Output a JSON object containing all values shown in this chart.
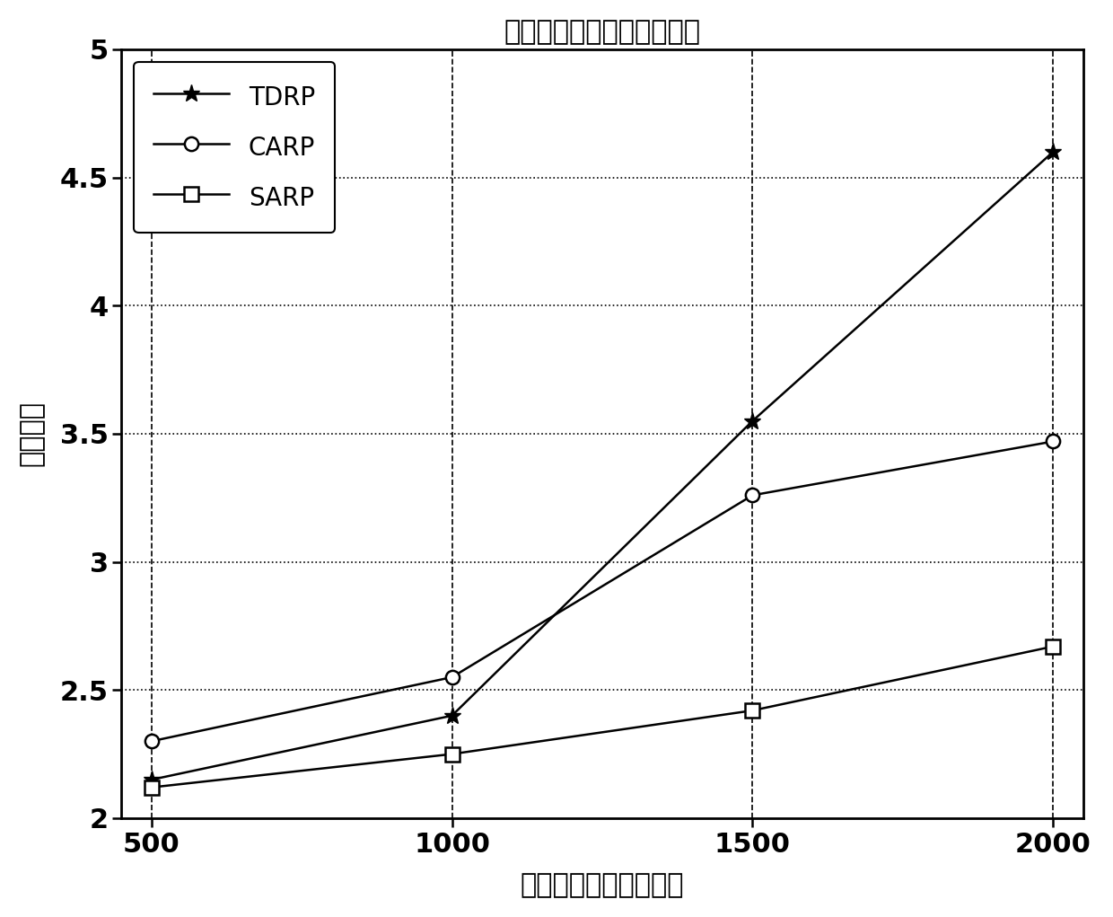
{
  "title": "认知无线网路路由时延仿真",
  "xlabel": "源节点与目的节点距离",
  "ylabel": "平均时延",
  "x": [
    500,
    1000,
    1500,
    2000
  ],
  "TDRP": [
    2.15,
    2.4,
    3.55,
    4.6
  ],
  "CARP": [
    2.3,
    2.55,
    3.26,
    3.47
  ],
  "SARP": [
    2.12,
    2.25,
    2.42,
    2.67
  ],
  "xlim": [
    500,
    2000
  ],
  "ylim": [
    2.0,
    5.0
  ],
  "yticks": [
    2.0,
    2.5,
    3.0,
    3.5,
    4.0,
    4.5,
    5.0
  ],
  "ytick_labels": [
    "2",
    "2.5",
    "3",
    "3.5",
    "4",
    "4.5",
    "5"
  ],
  "xticks": [
    500,
    1000,
    1500,
    2000
  ],
  "xtick_labels": [
    "500",
    "1000",
    "1500",
    "2000"
  ],
  "line_color": "#000000",
  "grid_color": "#555555",
  "bg_color": "#ffffff"
}
